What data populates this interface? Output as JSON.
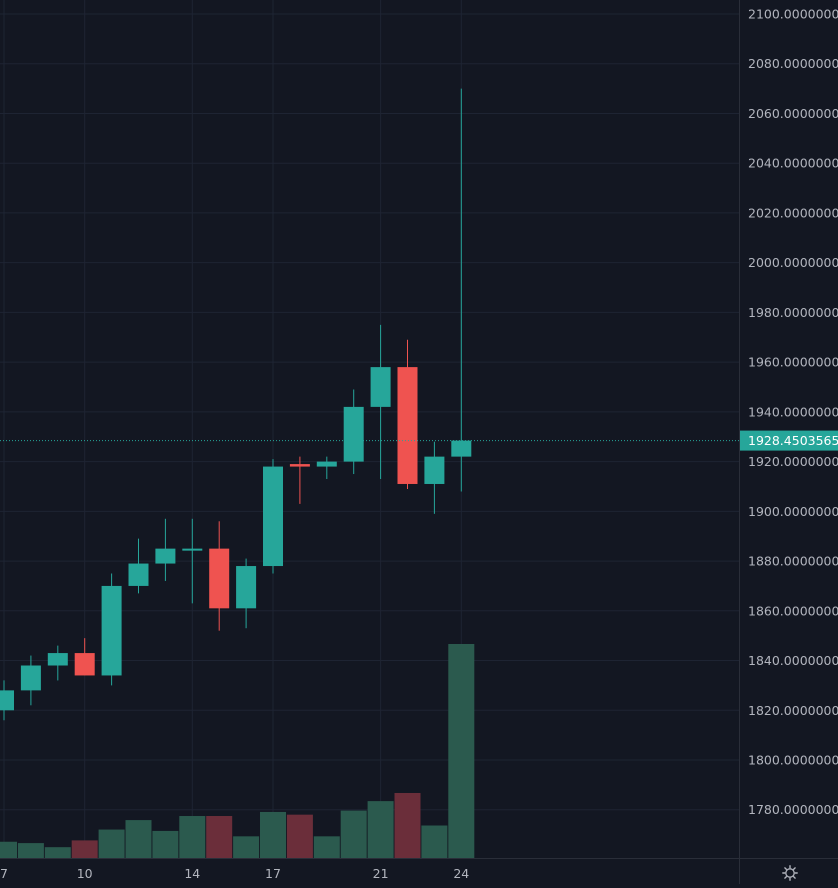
{
  "chart_data": {
    "type": "candlestick",
    "price_axis": {
      "min": 1760,
      "max": 2100,
      "ticks": [
        "2100.00000000",
        "2080.00000000",
        "2060.00000000",
        "2040.00000000",
        "2020.00000000",
        "2000.00000000",
        "1980.00000000",
        "1960.00000000",
        "1940.00000000",
        "1920.00000000",
        "1900.00000000",
        "1880.00000000",
        "1860.00000000",
        "1840.00000000",
        "1820.00000000",
        "1800.00000000",
        "1780.00000000"
      ]
    },
    "time_axis": {
      "labels": [
        {
          "day": 7,
          "label": "7"
        },
        {
          "day": 10,
          "label": "10"
        },
        {
          "day": 14,
          "label": "14"
        },
        {
          "day": 17,
          "label": "17"
        },
        {
          "day": 21,
          "label": "21"
        },
        {
          "day": 24,
          "label": "24"
        }
      ]
    },
    "last_price": {
      "value": 1928.45035652,
      "label": "1928.45035652"
    },
    "colors": {
      "up": "#26a69a",
      "down": "#ef5350",
      "volume_up": "#2b5a4e",
      "volume_down": "#6b2e3a",
      "background": "#131722",
      "grid": "#1e2433",
      "axis_text": "#b2b5be",
      "last_price_line": "#26a69a"
    },
    "candles": [
      {
        "day": 7,
        "open": 1820,
        "high": 1832,
        "low": 1816,
        "close": 1828,
        "volume": 12
      },
      {
        "day": 8,
        "open": 1828,
        "high": 1842,
        "low": 1822,
        "close": 1838,
        "volume": 11
      },
      {
        "day": 9,
        "open": 1838,
        "high": 1846,
        "low": 1832,
        "close": 1843,
        "volume": 8
      },
      {
        "day": 10,
        "open": 1843,
        "high": 1849,
        "low": 1834,
        "close": 1834,
        "volume": 13
      },
      {
        "day": 11,
        "open": 1834,
        "high": 1875,
        "low": 1830,
        "close": 1870,
        "volume": 21
      },
      {
        "day": 12,
        "open": 1870,
        "high": 1889,
        "low": 1867,
        "close": 1879,
        "volume": 28
      },
      {
        "day": 13,
        "open": 1879,
        "high": 1897,
        "low": 1872,
        "close": 1885,
        "volume": 20
      },
      {
        "day": 14,
        "open": 1885,
        "high": 1897,
        "low": 1863,
        "close": 1885,
        "volume": 31
      },
      {
        "day": 15,
        "open": 1885,
        "high": 1896,
        "low": 1852,
        "close": 1861,
        "volume": 31
      },
      {
        "day": 16,
        "open": 1861,
        "high": 1881,
        "low": 1853,
        "close": 1878,
        "volume": 16
      },
      {
        "day": 17,
        "open": 1878,
        "high": 1921,
        "low": 1875,
        "close": 1918,
        "volume": 34
      },
      {
        "day": 18,
        "open": 1919,
        "high": 1922,
        "low": 1903,
        "close": 1918,
        "volume": 32
      },
      {
        "day": 19,
        "open": 1918,
        "high": 1922,
        "low": 1913,
        "close": 1920,
        "volume": 16
      },
      {
        "day": 20,
        "open": 1920,
        "high": 1949,
        "low": 1915,
        "close": 1942,
        "volume": 35
      },
      {
        "day": 21,
        "open": 1942,
        "high": 1975,
        "low": 1913,
        "close": 1958,
        "volume": 42
      },
      {
        "day": 22,
        "open": 1958,
        "high": 1969,
        "low": 1909,
        "close": 1911,
        "volume": 48
      },
      {
        "day": 23,
        "open": 1911,
        "high": 1928,
        "low": 1899,
        "close": 1922,
        "volume": 24
      },
      {
        "day": 24,
        "open": 1922,
        "high": 2070,
        "low": 1908,
        "close": 1928.45035652,
        "volume": 158
      }
    ]
  },
  "toolbar": {
    "settings_icon": "gear-icon"
  }
}
